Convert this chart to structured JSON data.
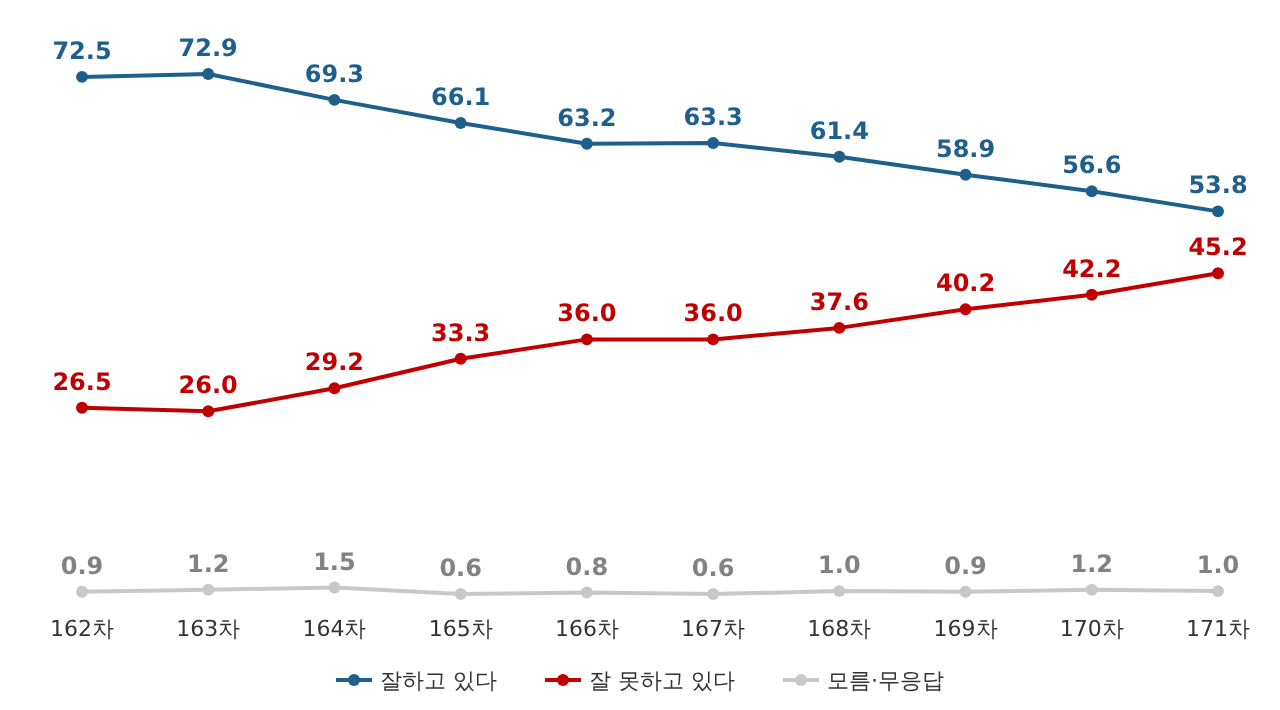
{
  "chart_data": {
    "type": "line",
    "categories": [
      "162차",
      "163차",
      "164차",
      "165차",
      "166차",
      "167차",
      "168차",
      "169차",
      "170차",
      "171차"
    ],
    "series": [
      {
        "name": "잘하고 있다",
        "color": "#1f5f8b",
        "values": [
          72.5,
          72.9,
          69.3,
          66.1,
          63.2,
          63.3,
          61.4,
          58.9,
          56.6,
          53.8
        ],
        "value_labels": [
          "72.5",
          "72.9",
          "69.3",
          "66.1",
          "63.2",
          "63.3",
          "61.4",
          "58.9",
          "56.6",
          "53.8"
        ]
      },
      {
        "name": "잘 못하고 있다",
        "color": "#c00000",
        "values": [
          26.5,
          26.0,
          29.2,
          33.3,
          36.0,
          36.0,
          37.6,
          40.2,
          42.2,
          45.2
        ],
        "value_labels": [
          "26.5",
          "26.0",
          "29.2",
          "33.3",
          "36.0",
          "36.0",
          "37.6",
          "40.2",
          "42.2",
          "45.2"
        ]
      },
      {
        "name": "모름·무응답",
        "color": "#c8c8c8",
        "values": [
          0.9,
          1.2,
          1.5,
          0.6,
          0.8,
          0.6,
          1.0,
          0.9,
          1.2,
          1.0
        ],
        "value_labels": [
          "0.9",
          "1.2",
          "1.5",
          "0.6",
          "0.8",
          "0.6",
          "1.0",
          "0.9",
          "1.2",
          "1.0"
        ]
      }
    ],
    "tick_labels": "x",
    "marker": "circle",
    "line_style": "solid",
    "legend": "bottom"
  }
}
